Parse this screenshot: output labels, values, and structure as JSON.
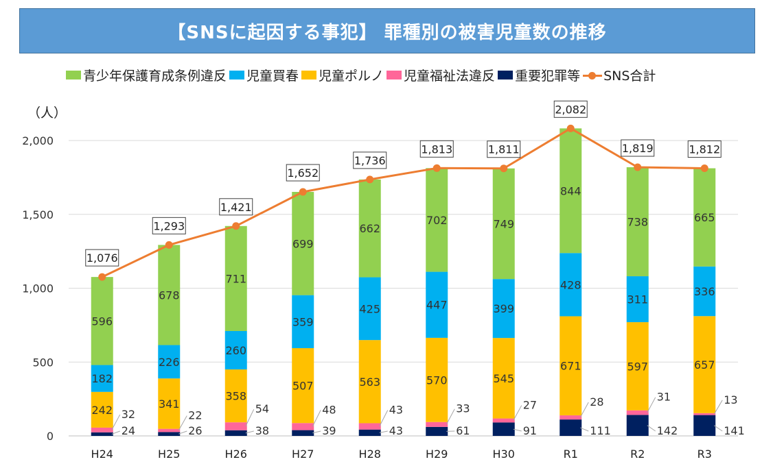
{
  "title": "【SNSに起因する事犯】 罪種別の被害児童数の推移",
  "unit_label": "（人）",
  "colors": {
    "youth_ordinance": "#92d050",
    "child_prostitution": "#00b0f0",
    "child_pornography": "#ffc000",
    "child_welfare": "#ff6699",
    "serious_crime": "#002060",
    "sns_total": "#ed7d31",
    "title_bg": "#5b9bd5"
  },
  "legend": [
    {
      "label": "青少年保護育成条例違反",
      "color": "#92d050",
      "kind": "bar"
    },
    {
      "label": "児童買春",
      "color": "#00b0f0",
      "kind": "bar"
    },
    {
      "label": "児童ポルノ",
      "color": "#ffc000",
      "kind": "bar"
    },
    {
      "label": "児童福祉法違反",
      "color": "#ff6699",
      "kind": "bar"
    },
    {
      "label": "重要犯罪等",
      "color": "#002060",
      "kind": "bar"
    },
    {
      "label": "SNS合計",
      "color": "#ed7d31",
      "kind": "line"
    }
  ],
  "chart_data": {
    "type": "bar",
    "stacked": true,
    "title": "【SNSに起因する事犯】 罪種別の被害児童数の推移",
    "xlabel": "",
    "ylabel": "（人）",
    "ylim": [
      0,
      2000
    ],
    "yticks": [
      0,
      500,
      1000,
      1500,
      2000
    ],
    "ytick_labels": [
      "0",
      "500",
      "1,000",
      "1,500",
      "2,000"
    ],
    "grid": true,
    "legend_position": "top",
    "categories": [
      "H24",
      "H25",
      "H26",
      "H27",
      "H28",
      "H29",
      "H30",
      "R1",
      "R2",
      "R3"
    ],
    "series": [
      {
        "name": "重要犯罪等",
        "color": "#002060",
        "values": [
          24,
          26,
          38,
          39,
          43,
          61,
          91,
          111,
          142,
          141
        ]
      },
      {
        "name": "児童福祉法違反",
        "color": "#ff6699",
        "values": [
          32,
          22,
          54,
          48,
          43,
          33,
          27,
          28,
          31,
          13
        ]
      },
      {
        "name": "児童ポルノ",
        "color": "#ffc000",
        "values": [
          242,
          341,
          358,
          507,
          563,
          570,
          545,
          671,
          597,
          657
        ]
      },
      {
        "name": "児童買春",
        "color": "#00b0f0",
        "values": [
          182,
          226,
          260,
          359,
          425,
          447,
          399,
          428,
          311,
          336
        ]
      },
      {
        "name": "青少年保護育成条例違反",
        "color": "#92d050",
        "values": [
          596,
          678,
          711,
          699,
          662,
          702,
          749,
          844,
          738,
          665
        ]
      }
    ],
    "line_series": {
      "name": "SNS合計",
      "color": "#ed7d31",
      "values": [
        1076,
        1293,
        1421,
        1652,
        1736,
        1813,
        1811,
        2082,
        1819,
        1812
      ],
      "labels": [
        "1,076",
        "1,293",
        "1,421",
        "1,652",
        "1,736",
        "1,813",
        "1,811",
        "2,082",
        "1,819",
        "1,812"
      ]
    }
  }
}
